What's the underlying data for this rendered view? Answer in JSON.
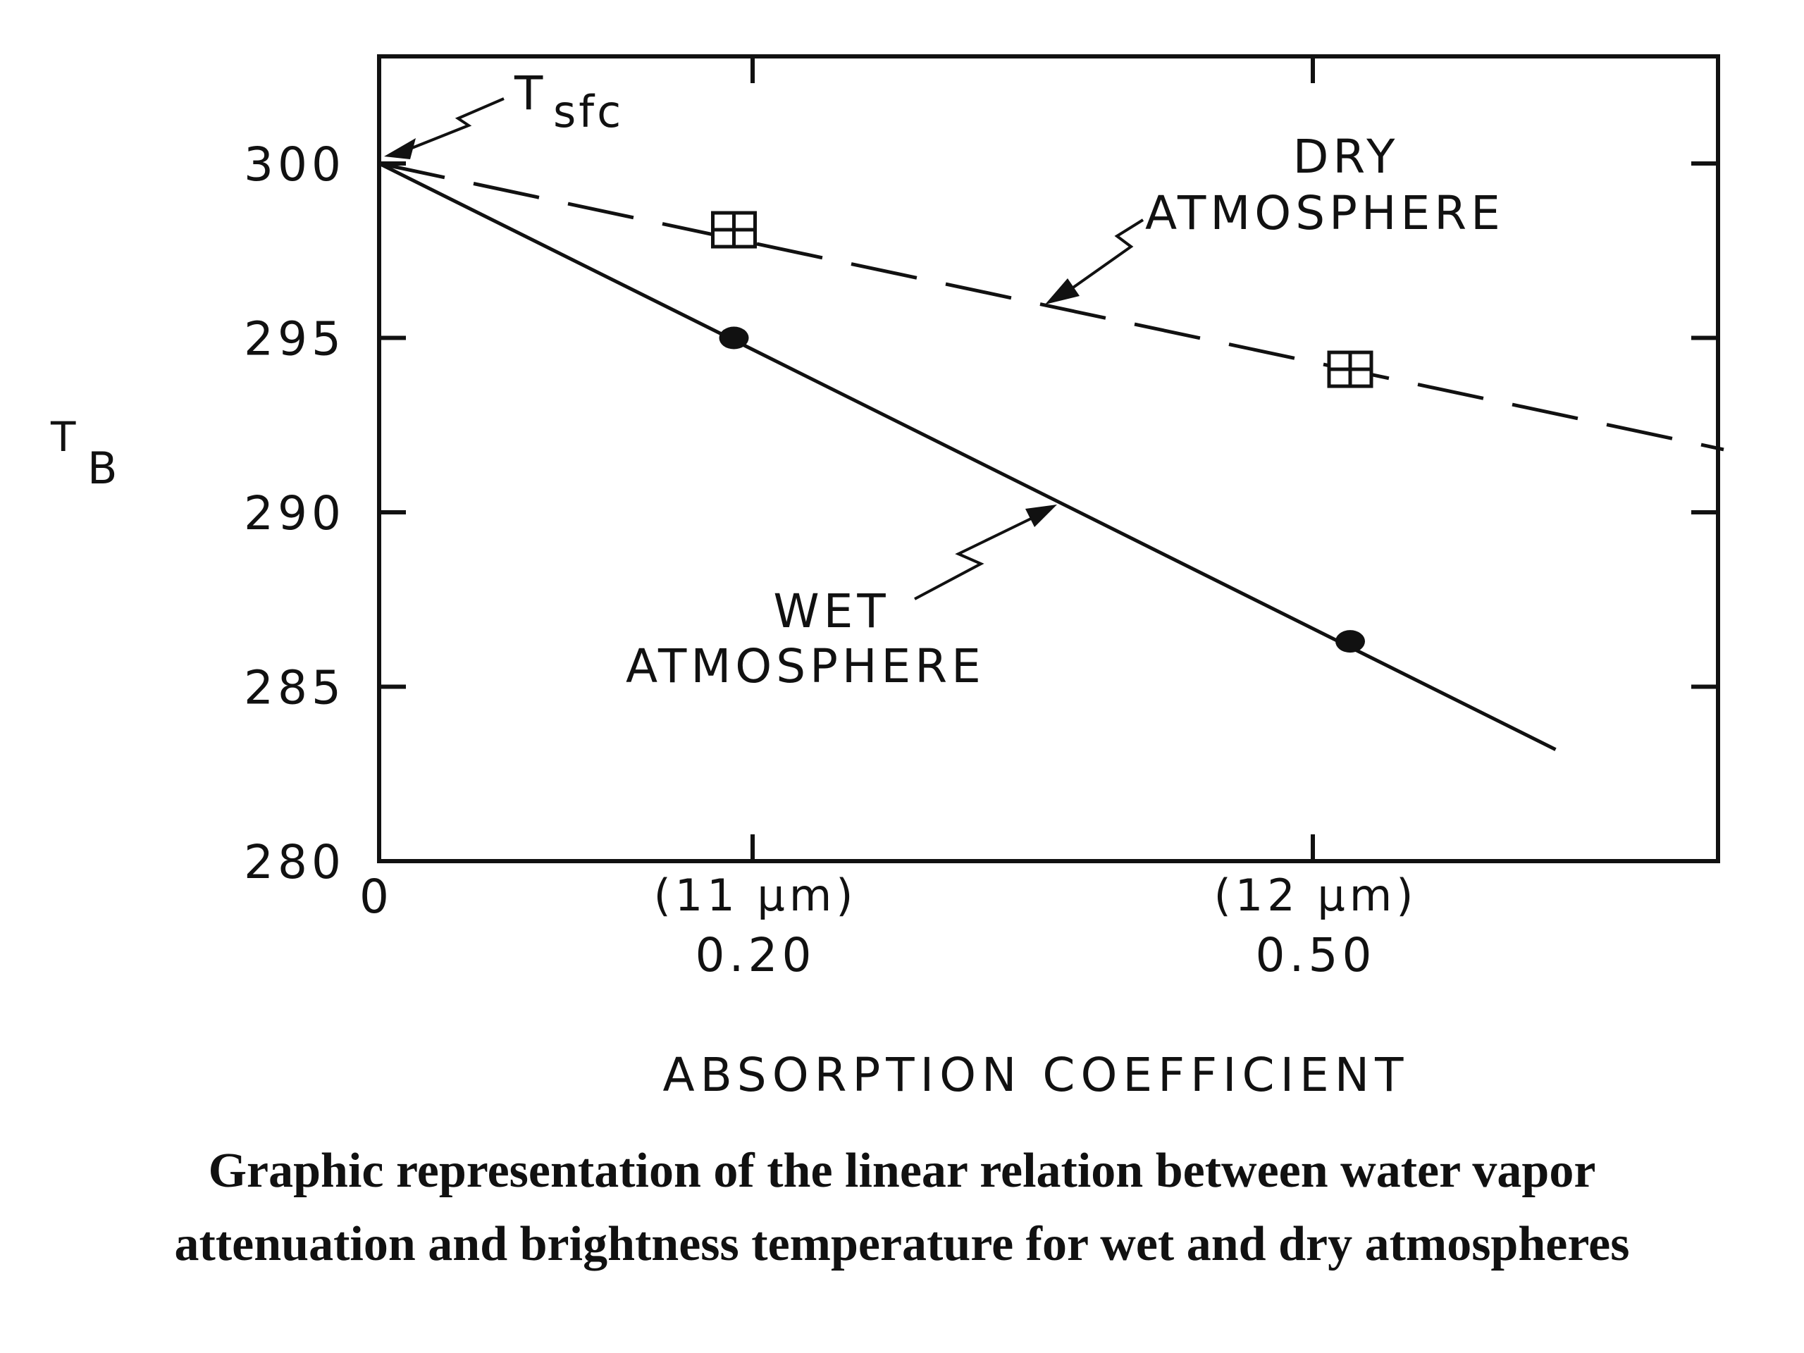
{
  "chart_data": {
    "type": "line",
    "ylabel": "T",
    "ylabel_subscript": "B",
    "xlabel": "ABSORPTION   COEFFICIENT",
    "ylim": [
      280,
      303
    ],
    "xlim": [
      0,
      0.73
    ],
    "yticks": [
      {
        "value": 280,
        "label": "280"
      },
      {
        "value": 285,
        "label": "285"
      },
      {
        "value": 290,
        "label": "290"
      },
      {
        "value": 295,
        "label": "295"
      },
      {
        "value": 300,
        "label": "300"
      }
    ],
    "xticks": [
      {
        "value": 0,
        "label": "0",
        "sublabel": ""
      },
      {
        "value": 0.2,
        "label": "0.20",
        "sublabel": "(11 μm)"
      },
      {
        "value": 0.5,
        "label": "0.50",
        "sublabel": "(12 μm)"
      }
    ],
    "series": [
      {
        "name": "DRY ATMOSPHERE",
        "style": "dashed",
        "marker": "boxed-cross",
        "line": [
          [
            0,
            300
          ],
          [
            0.72,
            291.8
          ]
        ],
        "points": [
          [
            0.19,
            298.1
          ],
          [
            0.52,
            294.1
          ]
        ]
      },
      {
        "name": "WET ATMOSPHERE",
        "style": "solid",
        "marker": "filled-dot",
        "line": [
          [
            0,
            300
          ],
          [
            0.63,
            283.2
          ]
        ],
        "points": [
          [
            0.19,
            295.0
          ],
          [
            0.52,
            286.3
          ]
        ]
      }
    ],
    "annotations": [
      {
        "text": "T",
        "subscript": "sfc",
        "at": [
          0,
          300
        ]
      },
      {
        "text": "DRY",
        "line2": "ATMOSPHERE"
      },
      {
        "text": "WET",
        "line2": "ATMOSPHERE"
      }
    ],
    "grid": false,
    "colors": {
      "ink": "#111111",
      "background": "#ffffff"
    }
  },
  "caption": {
    "line1": "Graphic representation of the linear relation between water vapor",
    "line2": "attenuation and brightness temperature for wet and dry atmospheres"
  }
}
